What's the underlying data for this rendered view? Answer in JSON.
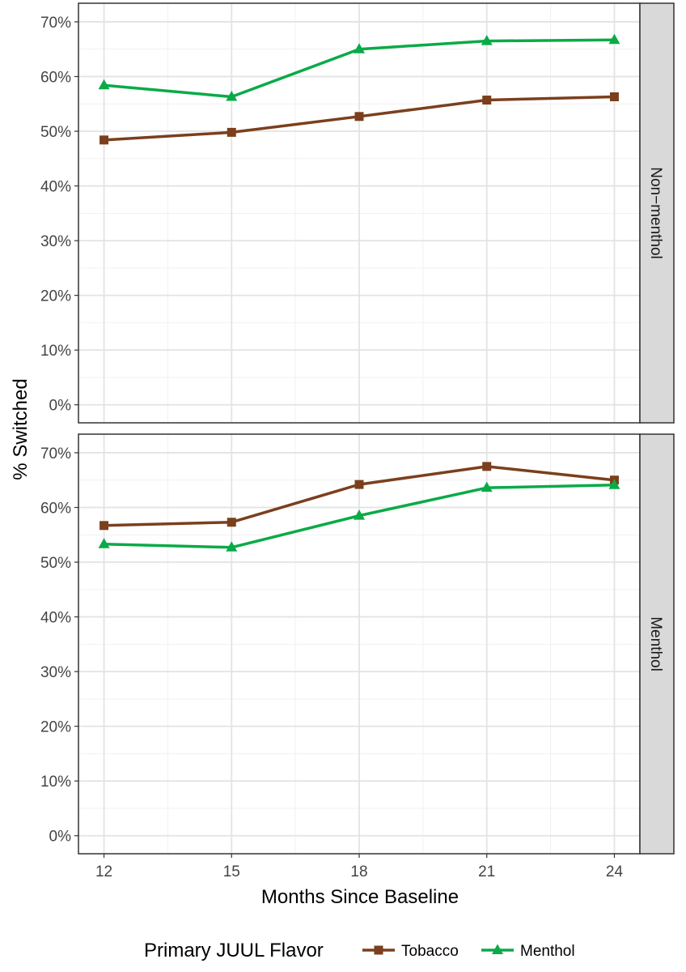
{
  "chart_data": {
    "type": "line",
    "xlabel": "Months Since Baseline",
    "ylabel": "% Switched",
    "x": [
      12,
      15,
      18,
      21,
      24
    ],
    "x_ticks": [
      "12",
      "15",
      "18",
      "21",
      "24"
    ],
    "ylim": [
      -0.033,
      0.734
    ],
    "y_ticks": [
      0,
      0.1,
      0.2,
      0.3,
      0.4,
      0.5,
      0.6,
      0.7
    ],
    "y_tick_labels": [
      "0%",
      "10%",
      "20%",
      "30%",
      "40%",
      "50%",
      "60%",
      "70%"
    ],
    "grid": true,
    "legend": {
      "title": "Primary JUUL Flavor",
      "position": "bottom",
      "entries": [
        "Tobacco",
        "Menthol"
      ]
    },
    "series_colors": {
      "Tobacco": "#7b3f1d",
      "Menthol": "#0aaa48"
    },
    "facets": [
      {
        "label": "Non−menthol",
        "series": [
          {
            "name": "Tobacco",
            "marker": "square",
            "values": [
              0.484,
              0.498,
              0.527,
              0.557,
              0.563
            ]
          },
          {
            "name": "Menthol",
            "marker": "triangle",
            "values": [
              0.584,
              0.563,
              0.65,
              0.665,
              0.667
            ]
          }
        ]
      },
      {
        "label": "Menthol",
        "series": [
          {
            "name": "Tobacco",
            "marker": "square",
            "values": [
              0.567,
              0.573,
              0.642,
              0.675,
              0.65
            ]
          },
          {
            "name": "Menthol",
            "marker": "triangle",
            "values": [
              0.533,
              0.527,
              0.585,
              0.636,
              0.641
            ]
          }
        ]
      }
    ]
  }
}
